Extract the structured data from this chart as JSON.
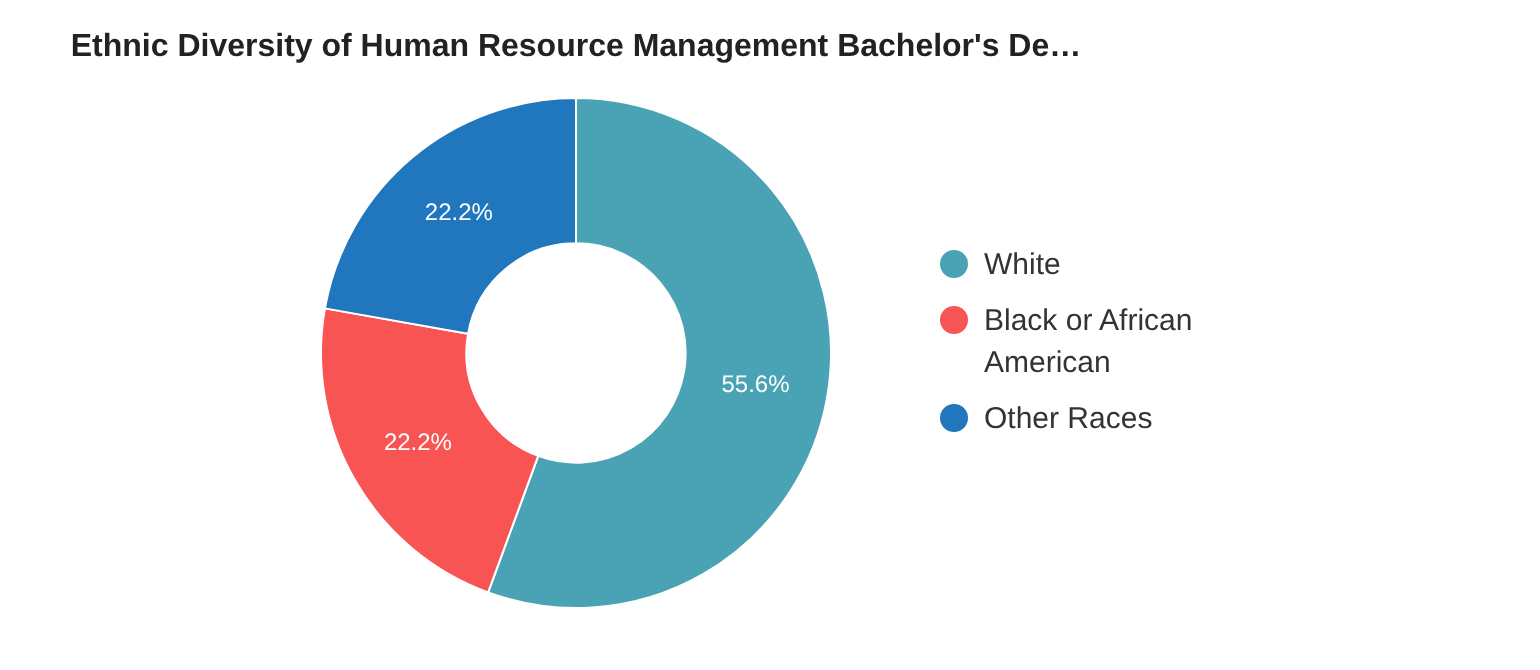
{
  "chart_data": {
    "type": "donut",
    "title": "Ethnic Diversity of Human Resource Management Bachelor's De…",
    "categories": [
      "White",
      "Black or African American",
      "Other Races"
    ],
    "values": [
      55.6,
      22.2,
      22.2
    ],
    "colors": [
      "#4aa3b5",
      "#f95454",
      "#2077be"
    ],
    "value_labels": [
      "55.6%",
      "22.2%",
      "22.2%"
    ],
    "legend": "right"
  }
}
